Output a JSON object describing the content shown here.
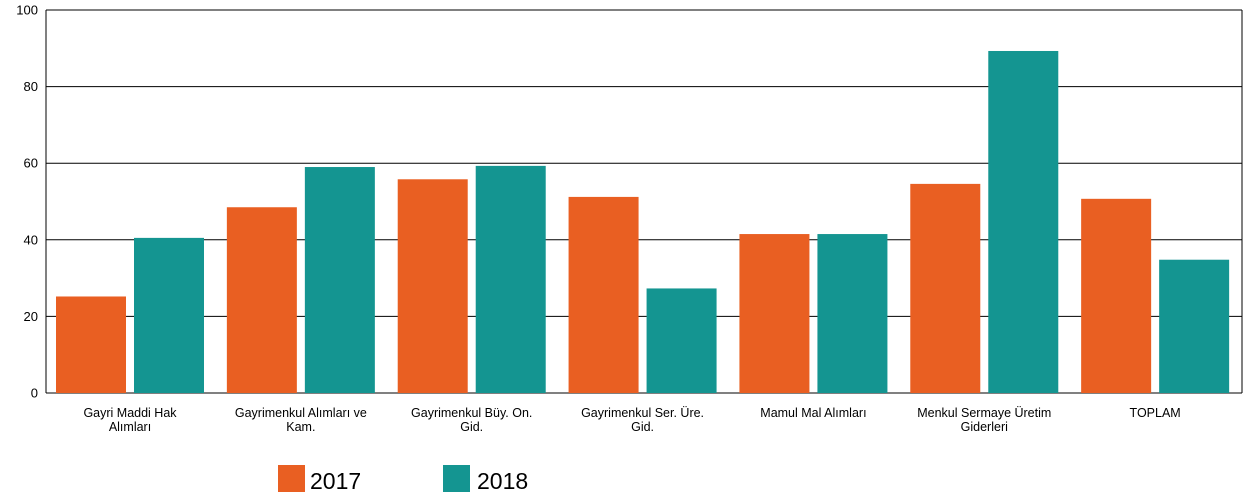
{
  "chart_data": {
    "type": "bar",
    "categories": [
      [
        "Gayri Maddi Hak",
        "Alımları"
      ],
      [
        "Gayrimenkul Alımları ve",
        "Kam."
      ],
      [
        "Gayrimenkul Büy. On.",
        "Gid."
      ],
      [
        "Gayrimenkul Ser. Üre.",
        "Gid."
      ],
      [
        "Mamul Mal Alımları"
      ],
      [
        "Menkul Sermaye Üretim",
        "Giderleri"
      ],
      [
        "TOPLAM"
      ]
    ],
    "series": [
      {
        "name": "2017",
        "color": "#e95f22",
        "values": [
          25.2,
          48.5,
          55.8,
          51.2,
          41.5,
          54.6,
          50.7
        ]
      },
      {
        "name": "2018",
        "color": "#149591",
        "values": [
          40.5,
          59.0,
          59.3,
          27.3,
          41.5,
          89.3,
          34.8
        ]
      }
    ],
    "ylim": [
      0,
      100
    ],
    "yticks": [
      0,
      20,
      40,
      60,
      80,
      100
    ],
    "grid": true,
    "legend": "bottom-left",
    "title": "",
    "xlabel": "",
    "ylabel": ""
  }
}
